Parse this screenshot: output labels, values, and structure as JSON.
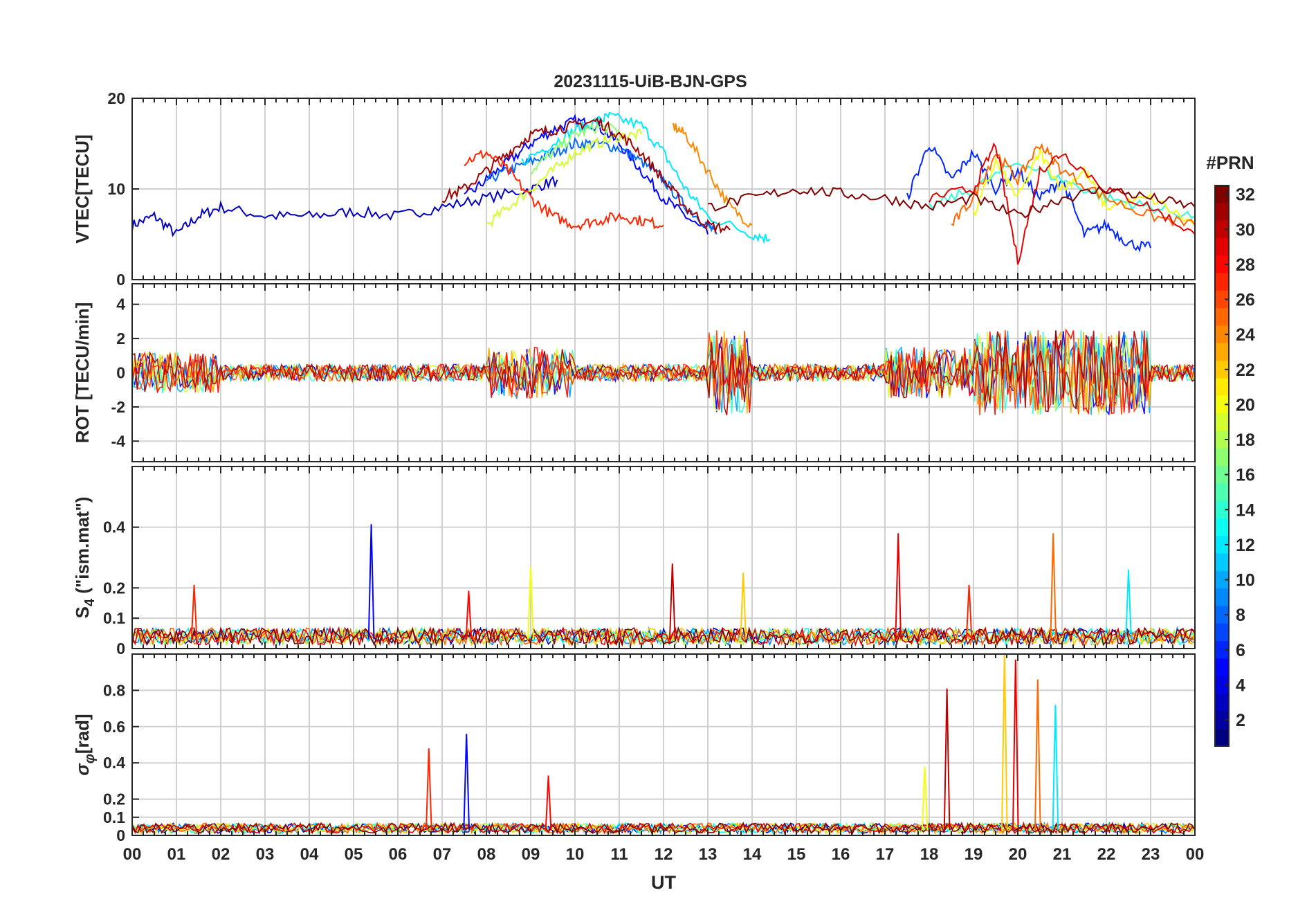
{
  "chart_data": {
    "type": "line",
    "title": "20231115-UiB-BJN-GPS",
    "xlabel": "UT",
    "x_tick_labels": [
      "00",
      "01",
      "02",
      "03",
      "04",
      "05",
      "06",
      "07",
      "08",
      "09",
      "10",
      "11",
      "12",
      "13",
      "14",
      "15",
      "16",
      "17",
      "18",
      "19",
      "20",
      "21",
      "22",
      "23",
      "00"
    ],
    "xlim": [
      0,
      24
    ],
    "grid": true,
    "panels": [
      {
        "id": "vtec",
        "ylabel": "VTEC[TECU]",
        "ylim": [
          0,
          20
        ],
        "yticks": [
          0,
          10,
          20
        ],
        "ytick_labels": [
          "0",
          "10",
          "20"
        ],
        "series": [
          {
            "prn": 3,
            "x": [
              0,
              0.5,
              1,
              1.5,
              2,
              3,
              4,
              5,
              6,
              7,
              8,
              9,
              9.6
            ],
            "y": [
              6,
              7,
              5,
              7,
              8,
              7,
              7,
              7.5,
              7,
              8,
              9,
              10,
              11
            ]
          },
          {
            "prn": 5,
            "x": [
              7.5,
              8,
              8.5,
              9,
              9.5,
              10,
              10.5,
              11,
              11.5,
              12,
              12.5,
              13
            ],
            "y": [
              9,
              11,
              13,
              15,
              16.5,
              17.5,
              17,
              15,
              12,
              9,
              7,
              5
            ]
          },
          {
            "prn": 8,
            "x": [
              8,
              8.5,
              9,
              9.5,
              10,
              10.5,
              11,
              11.5,
              12,
              12.5,
              13,
              13.2
            ],
            "y": [
              11,
              12,
              13,
              14,
              15,
              15,
              14.5,
              13,
              11,
              8,
              6,
              5
            ]
          },
          {
            "prn": 12,
            "x": [
              8.8,
              9.5,
              10,
              10.5,
              10.8,
              11.5,
              12,
              12.5,
              13,
              14,
              14.4
            ],
            "y": [
              13,
              15,
              16.5,
              17.5,
              18,
              17,
              14,
              10,
              7,
              5,
              4.5
            ]
          },
          {
            "prn": 17,
            "x": [
              9,
              9.5,
              10,
              10.5,
              11
            ],
            "y": [
              12,
              14,
              16,
              16.8,
              16.5
            ]
          },
          {
            "prn": 19,
            "x": [
              8,
              8.5,
              9,
              9.5,
              10,
              10.5,
              11,
              11.5
            ],
            "y": [
              6,
              8,
              10,
              12,
              14,
              15,
              15.8,
              16
            ]
          },
          {
            "prn": 24,
            "x": [
              12.2,
              12.5,
              13,
              13.5,
              14
            ],
            "y": [
              17,
              16,
              12,
              8,
              6
            ]
          },
          {
            "prn": 27,
            "x": [
              7.5,
              8,
              8.5,
              9,
              9.5,
              10,
              10.5,
              11,
              11.5,
              12
            ],
            "y": [
              13,
              14,
              12,
              9,
              7,
              6,
              6.5,
              7,
              6.5,
              6
            ]
          },
          {
            "prn": 31,
            "x": [
              7,
              7.5,
              8,
              8.5,
              9,
              9.5,
              10,
              10.5,
              11,
              11.5,
              12,
              12.5,
              13,
              13.5
            ],
            "y": [
              9,
              10,
              12,
              14,
              16,
              16.5,
              17,
              17.5,
              16,
              14,
              11,
              8,
              6,
              5.5
            ]
          },
          {
            "prn": 6,
            "x": [
              17.5,
              18,
              18.5,
              19,
              19.5,
              20,
              20.5,
              21,
              21.5,
              22,
              22.5,
              23
            ],
            "y": [
              9,
              15,
              11,
              14,
              10,
              12,
              9,
              11,
              5,
              6,
              4,
              3.5
            ]
          },
          {
            "prn": 14,
            "x": [
              18,
              19,
              20,
              21,
              22,
              23,
              24
            ],
            "y": [
              8,
              10,
              13,
              11,
              9,
              8,
              7
            ]
          },
          {
            "prn": 20,
            "x": [
              19,
              19.5,
              20,
              20.5,
              21,
              21.5,
              22,
              23,
              24
            ],
            "y": [
              7,
              13,
              9,
              14,
              10,
              12,
              8,
              9,
              6
            ]
          },
          {
            "prn": 25,
            "x": [
              18.5,
              19,
              19.5,
              20,
              20.5,
              21,
              22,
              23,
              24
            ],
            "y": [
              6,
              9,
              14,
              11,
              15,
              12,
              9,
              7,
              6
            ]
          },
          {
            "prn": 29,
            "x": [
              18,
              19,
              19.5,
              20,
              20.5,
              21,
              22,
              23,
              24
            ],
            "y": [
              9,
              10,
              15,
              2,
              12,
              14,
              10,
              8,
              5
            ]
          },
          {
            "prn": 32,
            "x": [
              13,
              14,
              15,
              16,
              17,
              18,
              19,
              20,
              21,
              22,
              23,
              24
            ],
            "y": [
              8,
              9,
              10,
              9.5,
              9,
              8,
              9,
              7,
              9,
              10,
              9,
              8
            ]
          }
        ]
      },
      {
        "id": "rot",
        "ylabel": "ROT [TECU/min]",
        "ylim": [
          -5.2,
          5.2
        ],
        "yticks": [
          -4,
          -2,
          0,
          2,
          4
        ],
        "ytick_labels": [
          "-4",
          "-2",
          "0",
          "2",
          "4"
        ]
      },
      {
        "id": "s4",
        "ylabel": "S4 (\"ism.mat\")",
        "ylabel_main": "S",
        "ylabel_sub": "4",
        "ylabel_rest": " (\"ism.mat\")",
        "ylim": [
          0,
          0.6
        ],
        "yticks": [
          0,
          0.1,
          0.2,
          0.4
        ],
        "ytick_labels": [
          "0",
          "0.1",
          "0.2",
          "0.4"
        ],
        "spikes": [
          {
            "x": 1.4,
            "y": 0.21
          },
          {
            "x": 5.4,
            "y": 0.41
          },
          {
            "x": 7.6,
            "y": 0.19
          },
          {
            "x": 12.2,
            "y": 0.28
          },
          {
            "x": 13.8,
            "y": 0.25
          },
          {
            "x": 17.3,
            "y": 0.38
          },
          {
            "x": 20.8,
            "y": 0.38
          },
          {
            "x": 22.5,
            "y": 0.26
          },
          {
            "x": 9.0,
            "y": 0.27
          },
          {
            "x": 18.9,
            "y": 0.21
          }
        ]
      },
      {
        "id": "sigma_phi",
        "ylabel": "σφ[rad]",
        "ylabel_main": "σ",
        "ylabel_sub": "φ",
        "ylabel_rest": "[rad]",
        "ylim": [
          0,
          1.0
        ],
        "yticks": [
          0,
          0.1,
          0.2,
          0.4,
          0.6,
          0.8
        ],
        "ytick_labels": [
          "0",
          "0.1",
          "0.2",
          "0.4",
          "0.6",
          "0.8"
        ],
        "spikes": [
          {
            "x": 6.7,
            "y": 0.48
          },
          {
            "x": 7.55,
            "y": 0.56
          },
          {
            "x": 9.4,
            "y": 0.33
          },
          {
            "x": 18.4,
            "y": 0.81
          },
          {
            "x": 19.7,
            "y": 1.0
          },
          {
            "x": 19.95,
            "y": 0.97
          },
          {
            "x": 20.45,
            "y": 0.86
          },
          {
            "x": 20.85,
            "y": 0.72
          },
          {
            "x": 17.9,
            "y": 0.38
          }
        ]
      }
    ],
    "colorbar": {
      "label": "#PRN",
      "min": 1,
      "max": 32,
      "ticks": [
        2,
        4,
        6,
        8,
        10,
        12,
        14,
        16,
        18,
        20,
        22,
        24,
        26,
        28,
        30,
        32
      ],
      "colormap": "jet"
    }
  }
}
